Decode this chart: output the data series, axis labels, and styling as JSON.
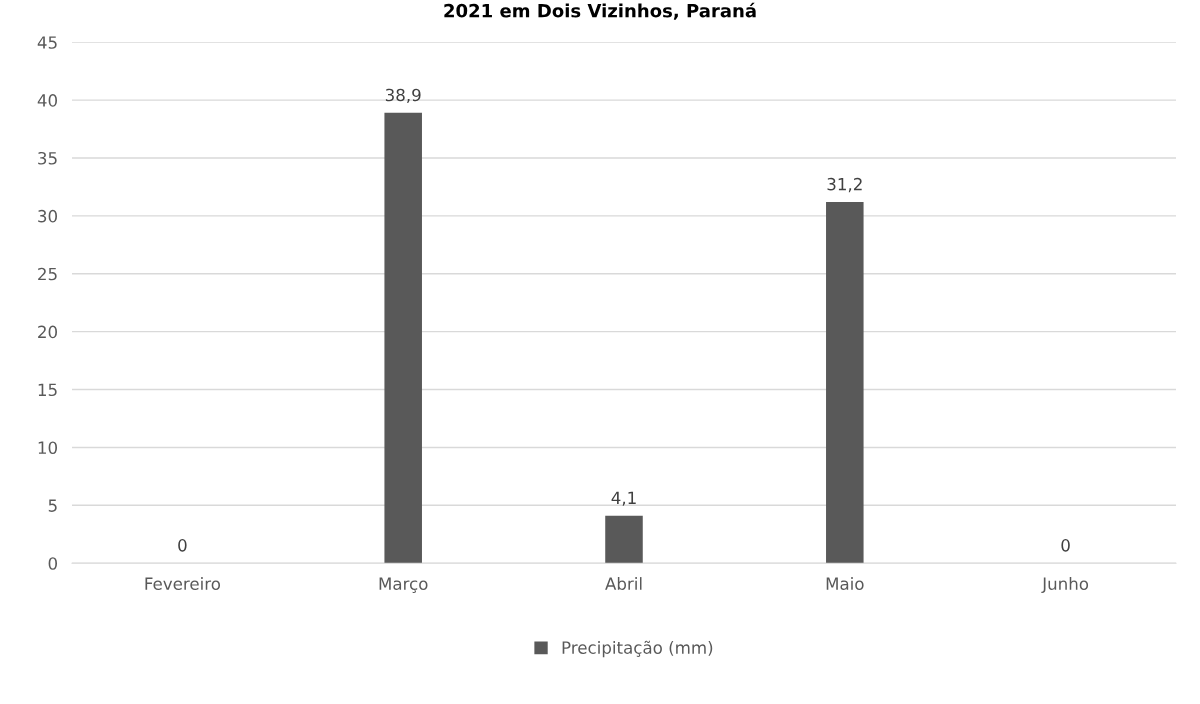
{
  "chart_data": {
    "type": "bar",
    "title": "2021 em Dois Vizinhos, Paraná",
    "categories": [
      "Fevereiro",
      "Março",
      "Abril",
      "Maio",
      "Junho"
    ],
    "series": [
      {
        "name": "Precipitação (mm)",
        "color": "#595959",
        "values": [
          0,
          38.9,
          4.1,
          31.2,
          0
        ]
      }
    ],
    "value_labels": [
      "0",
      "38,9",
      "4,1",
      "31,2",
      "0"
    ],
    "ylim": [
      0,
      45
    ],
    "yticks": [
      0,
      5,
      10,
      15,
      20,
      25,
      30,
      35,
      40,
      45
    ],
    "grid": "y",
    "legend": "bottom"
  }
}
